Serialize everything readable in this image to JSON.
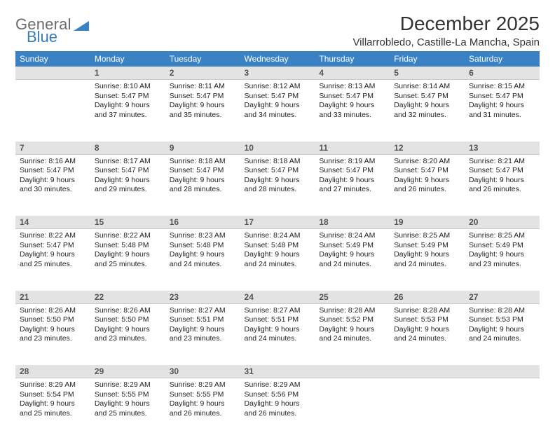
{
  "logo": {
    "text_general": "General",
    "text_blue": "Blue",
    "triangle_color": "#3a82c4"
  },
  "header": {
    "month_title": "December 2025",
    "location": "Villarrobledo, Castille-La Mancha, Spain"
  },
  "colors": {
    "header_bg": "#3a82c4",
    "header_text": "#ffffff",
    "daynum_bg": "#e3e3e3",
    "daynum_text": "#555555",
    "body_text": "#222222",
    "page_bg": "#ffffff"
  },
  "weekdays": [
    "Sunday",
    "Monday",
    "Tuesday",
    "Wednesday",
    "Thursday",
    "Friday",
    "Saturday"
  ],
  "weeks": [
    [
      null,
      {
        "n": "1",
        "sunrise": "8:10 AM",
        "sunset": "5:47 PM",
        "daylight": "9 hours and 37 minutes."
      },
      {
        "n": "2",
        "sunrise": "8:11 AM",
        "sunset": "5:47 PM",
        "daylight": "9 hours and 35 minutes."
      },
      {
        "n": "3",
        "sunrise": "8:12 AM",
        "sunset": "5:47 PM",
        "daylight": "9 hours and 34 minutes."
      },
      {
        "n": "4",
        "sunrise": "8:13 AM",
        "sunset": "5:47 PM",
        "daylight": "9 hours and 33 minutes."
      },
      {
        "n": "5",
        "sunrise": "8:14 AM",
        "sunset": "5:47 PM",
        "daylight": "9 hours and 32 minutes."
      },
      {
        "n": "6",
        "sunrise": "8:15 AM",
        "sunset": "5:47 PM",
        "daylight": "9 hours and 31 minutes."
      }
    ],
    [
      {
        "n": "7",
        "sunrise": "8:16 AM",
        "sunset": "5:47 PM",
        "daylight": "9 hours and 30 minutes."
      },
      {
        "n": "8",
        "sunrise": "8:17 AM",
        "sunset": "5:47 PM",
        "daylight": "9 hours and 29 minutes."
      },
      {
        "n": "9",
        "sunrise": "8:18 AM",
        "sunset": "5:47 PM",
        "daylight": "9 hours and 28 minutes."
      },
      {
        "n": "10",
        "sunrise": "8:18 AM",
        "sunset": "5:47 PM",
        "daylight": "9 hours and 28 minutes."
      },
      {
        "n": "11",
        "sunrise": "8:19 AM",
        "sunset": "5:47 PM",
        "daylight": "9 hours and 27 minutes."
      },
      {
        "n": "12",
        "sunrise": "8:20 AM",
        "sunset": "5:47 PM",
        "daylight": "9 hours and 26 minutes."
      },
      {
        "n": "13",
        "sunrise": "8:21 AM",
        "sunset": "5:47 PM",
        "daylight": "9 hours and 26 minutes."
      }
    ],
    [
      {
        "n": "14",
        "sunrise": "8:22 AM",
        "sunset": "5:47 PM",
        "daylight": "9 hours and 25 minutes."
      },
      {
        "n": "15",
        "sunrise": "8:22 AM",
        "sunset": "5:48 PM",
        "daylight": "9 hours and 25 minutes."
      },
      {
        "n": "16",
        "sunrise": "8:23 AM",
        "sunset": "5:48 PM",
        "daylight": "9 hours and 24 minutes."
      },
      {
        "n": "17",
        "sunrise": "8:24 AM",
        "sunset": "5:48 PM",
        "daylight": "9 hours and 24 minutes."
      },
      {
        "n": "18",
        "sunrise": "8:24 AM",
        "sunset": "5:49 PM",
        "daylight": "9 hours and 24 minutes."
      },
      {
        "n": "19",
        "sunrise": "8:25 AM",
        "sunset": "5:49 PM",
        "daylight": "9 hours and 24 minutes."
      },
      {
        "n": "20",
        "sunrise": "8:25 AM",
        "sunset": "5:49 PM",
        "daylight": "9 hours and 23 minutes."
      }
    ],
    [
      {
        "n": "21",
        "sunrise": "8:26 AM",
        "sunset": "5:50 PM",
        "daylight": "9 hours and 23 minutes."
      },
      {
        "n": "22",
        "sunrise": "8:26 AM",
        "sunset": "5:50 PM",
        "daylight": "9 hours and 23 minutes."
      },
      {
        "n": "23",
        "sunrise": "8:27 AM",
        "sunset": "5:51 PM",
        "daylight": "9 hours and 23 minutes."
      },
      {
        "n": "24",
        "sunrise": "8:27 AM",
        "sunset": "5:51 PM",
        "daylight": "9 hours and 24 minutes."
      },
      {
        "n": "25",
        "sunrise": "8:28 AM",
        "sunset": "5:52 PM",
        "daylight": "9 hours and 24 minutes."
      },
      {
        "n": "26",
        "sunrise": "8:28 AM",
        "sunset": "5:53 PM",
        "daylight": "9 hours and 24 minutes."
      },
      {
        "n": "27",
        "sunrise": "8:28 AM",
        "sunset": "5:53 PM",
        "daylight": "9 hours and 24 minutes."
      }
    ],
    [
      {
        "n": "28",
        "sunrise": "8:29 AM",
        "sunset": "5:54 PM",
        "daylight": "9 hours and 25 minutes."
      },
      {
        "n": "29",
        "sunrise": "8:29 AM",
        "sunset": "5:55 PM",
        "daylight": "9 hours and 25 minutes."
      },
      {
        "n": "30",
        "sunrise": "8:29 AM",
        "sunset": "5:55 PM",
        "daylight": "9 hours and 26 minutes."
      },
      {
        "n": "31",
        "sunrise": "8:29 AM",
        "sunset": "5:56 PM",
        "daylight": "9 hours and 26 minutes."
      },
      null,
      null,
      null
    ]
  ],
  "labels": {
    "sunrise_prefix": "Sunrise: ",
    "sunset_prefix": "Sunset: ",
    "daylight_prefix": "Daylight: "
  }
}
